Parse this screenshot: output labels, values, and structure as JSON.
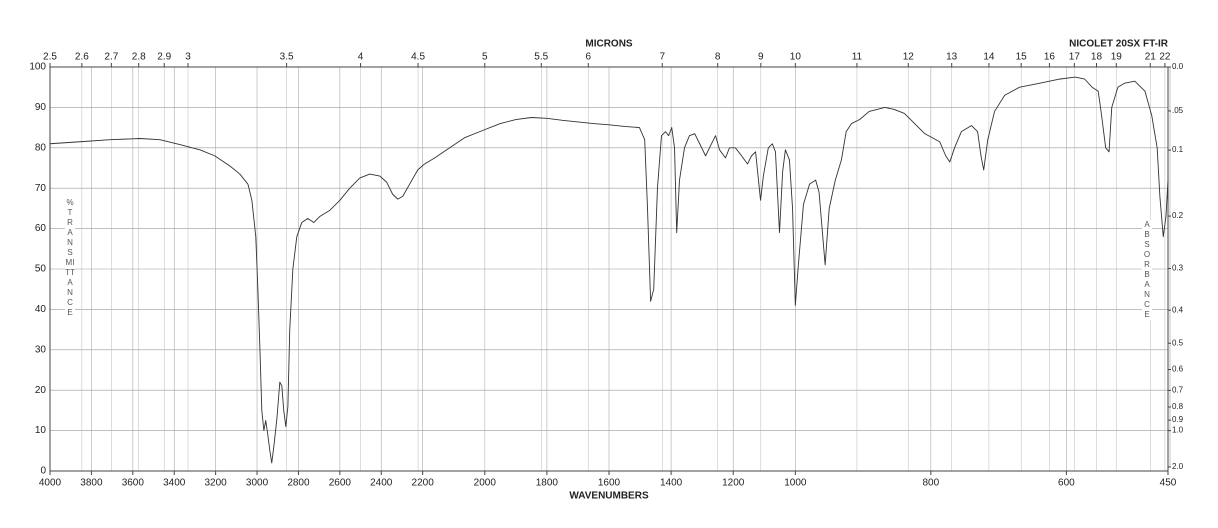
{
  "chart_data": {
    "type": "line",
    "title": "NICOLET 20SX FT-IR",
    "xlabel": "WAVENUMBERS",
    "x2label": "MICRONS",
    "ylabel": "%TRANSMITTANCE",
    "y2label": "ABSORBANCE",
    "color": "#333333",
    "grid": true,
    "xlim": [
      4000,
      450
    ],
    "x_scale_breaks": [
      2200,
      1000
    ],
    "xticks": [
      4000,
      3800,
      3600,
      3400,
      3200,
      3000,
      2800,
      2600,
      2400,
      2200,
      2000,
      1800,
      1600,
      1400,
      1200,
      1000,
      800,
      600,
      450
    ],
    "x2ticks": [
      2.5,
      2.6,
      2.7,
      2.8,
      2.9,
      3,
      3.5,
      4,
      4.5,
      5,
      5.5,
      6,
      7,
      8,
      9,
      10,
      11,
      12,
      13,
      14,
      15,
      16,
      17,
      18,
      19,
      21,
      22
    ],
    "x2scale": "reciprocal",
    "ylim": [
      0,
      100
    ],
    "yticks": [
      0,
      10,
      20,
      30,
      40,
      50,
      60,
      70,
      80,
      90,
      100
    ],
    "y2scale": "absorbance",
    "y2lim": [
      0,
      2
    ],
    "y2ticks": [
      {
        "value": 0,
        "label": "0.0"
      },
      {
        "value": 0.05,
        "label": ".05"
      },
      0.1,
      0.2,
      0.3,
      0.4,
      0.5,
      0.6,
      0.7,
      0.8,
      0.9,
      {
        "value": 1,
        "label": "1.0"
      },
      {
        "value": 2,
        "label": "2.0"
      }
    ],
    "x": [
      4000,
      3855,
      3710,
      3566,
      3469,
      3373,
      3276,
      3204,
      3131,
      3083,
      3044,
      3025,
      3006,
      2996,
      2986,
      2977,
      2967,
      2958,
      2948,
      2938,
      2929,
      2919,
      2904,
      2890,
      2880,
      2871,
      2861,
      2851,
      2842,
      2827,
      2808,
      2784,
      2755,
      2726,
      2697,
      2649,
      2600,
      2552,
      2504,
      2456,
      2407,
      2374,
      2345,
      2320,
      2296,
      2263,
      2224,
      2194,
      2161,
      2113,
      2065,
      2000,
      1950,
      1900,
      1850,
      1800,
      1750,
      1700,
      1650,
      1600,
      1550,
      1502,
      1485,
      1476,
      1466,
      1456,
      1444,
      1431,
      1418,
      1408,
      1398,
      1389,
      1382,
      1373,
      1357,
      1341,
      1324,
      1308,
      1289,
      1270,
      1257,
      1244,
      1225,
      1212,
      1193,
      1173,
      1154,
      1141,
      1128,
      1112,
      1103,
      1087,
      1074,
      1064,
      1051,
      1041,
      1032,
      1019,
      1009,
      1000,
      996,
      988,
      979,
      970,
      965,
      956,
      950,
      941,
      932,
      925,
      917,
      905,
      891,
      868,
      854,
      839,
      824,
      809,
      787,
      778,
      772,
      765,
      755,
      740,
      731,
      726,
      722,
      716,
      706,
      691,
      669,
      639,
      610,
      587,
      573,
      562,
      553,
      548,
      542,
      537,
      533,
      524,
      514,
      499,
      484,
      474,
      466,
      462,
      457,
      453,
      450
    ],
    "values": [
      81,
      81.5,
      82,
      82.3,
      82,
      80.8,
      79.5,
      78,
      75.5,
      73.5,
      71,
      67,
      58,
      45,
      30,
      15,
      10,
      12.5,
      9,
      5,
      2,
      6,
      13,
      22,
      21,
      15,
      11,
      16,
      35,
      50,
      58,
      61.5,
      62.5,
      61.5,
      63,
      64.5,
      67,
      70,
      72.5,
      73.5,
      73,
      71.5,
      68.5,
      67.3,
      68,
      71,
      74.5,
      76,
      77.5,
      80,
      82.5,
      84.5,
      86,
      87,
      87.5,
      87.3,
      86.8,
      86.4,
      86,
      85.7,
      85.3,
      85,
      82,
      65,
      42,
      45,
      70,
      83,
      84,
      83,
      85,
      80,
      59,
      72,
      80,
      83,
      83.5,
      81,
      78,
      81,
      83,
      79.5,
      77.5,
      80,
      80,
      78,
      76,
      78,
      79,
      67,
      73,
      80,
      81,
      79,
      59,
      74,
      79.5,
      77,
      65,
      41,
      50,
      66,
      71,
      72,
      69,
      51,
      65,
      72,
      77,
      84,
      86,
      87,
      89,
      90,
      89.5,
      88.5,
      86,
      83.5,
      81.5,
      78,
      76.5,
      80,
      84,
      85.5,
      84,
      78,
      74.5,
      82,
      89,
      93,
      95,
      96,
      97,
      97.5,
      97,
      95,
      94,
      88,
      80,
      79,
      90,
      95,
      96,
      96.5,
      94,
      88,
      80,
      68,
      58,
      63,
      72
    ]
  }
}
